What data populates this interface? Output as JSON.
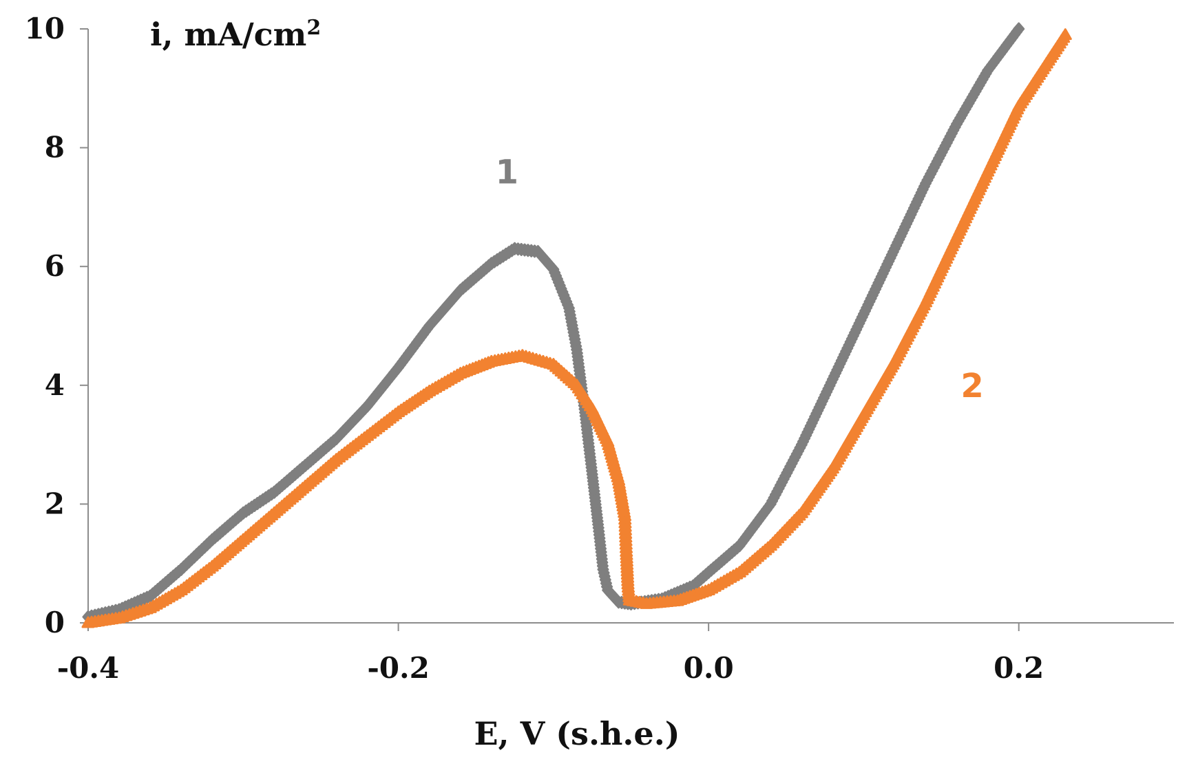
{
  "chart_data": {
    "type": "scatter",
    "title": "",
    "xlabel": "E, V (s.h.e.)",
    "ylabel_main": "i, mA/cm",
    "ylabel_sup": "2",
    "xlim": [
      -0.4,
      0.3
    ],
    "ylim": [
      0,
      10
    ],
    "xticks": [
      -0.4,
      -0.2,
      0.0,
      0.2
    ],
    "xtick_labels": [
      "-0.4",
      "-0.2",
      "0.0",
      "0.2"
    ],
    "yticks": [
      0,
      2,
      4,
      6,
      8,
      10
    ],
    "ytick_labels": [
      "0",
      "2",
      "4",
      "6",
      "8",
      "10"
    ],
    "grid": false,
    "series": [
      {
        "name": "1",
        "label_text": "1",
        "label_pos": [
          -0.13,
          7.4
        ],
        "color": "#7f7f7f",
        "marker": "diamond",
        "points": [
          [
            -0.4,
            0.1
          ],
          [
            -0.38,
            0.22
          ],
          [
            -0.36,
            0.45
          ],
          [
            -0.34,
            0.9
          ],
          [
            -0.32,
            1.4
          ],
          [
            -0.3,
            1.85
          ],
          [
            -0.28,
            2.2
          ],
          [
            -0.26,
            2.65
          ],
          [
            -0.24,
            3.1
          ],
          [
            -0.22,
            3.65
          ],
          [
            -0.2,
            4.3
          ],
          [
            -0.18,
            5.0
          ],
          [
            -0.16,
            5.6
          ],
          [
            -0.14,
            6.05
          ],
          [
            -0.125,
            6.3
          ],
          [
            -0.11,
            6.25
          ],
          [
            -0.1,
            5.95
          ],
          [
            -0.09,
            5.3
          ],
          [
            -0.085,
            4.6
          ],
          [
            -0.08,
            3.6
          ],
          [
            -0.075,
            2.5
          ],
          [
            -0.071,
            1.6
          ],
          [
            -0.068,
            0.9
          ],
          [
            -0.065,
            0.55
          ],
          [
            -0.058,
            0.35
          ],
          [
            -0.05,
            0.32
          ],
          [
            -0.03,
            0.4
          ],
          [
            -0.01,
            0.62
          ],
          [
            0.0,
            0.85
          ],
          [
            0.02,
            1.3
          ],
          [
            0.04,
            2.0
          ],
          [
            0.06,
            3.0
          ],
          [
            0.08,
            4.1
          ],
          [
            0.1,
            5.2
          ],
          [
            0.12,
            6.3
          ],
          [
            0.14,
            7.4
          ],
          [
            0.16,
            8.4
          ],
          [
            0.18,
            9.3
          ],
          [
            0.2,
            10.0
          ]
        ]
      },
      {
        "name": "2",
        "label_text": "2",
        "label_pos": [
          0.17,
          3.8
        ],
        "color": "#f28230",
        "marker": "triangle",
        "points": [
          [
            -0.4,
            0.0
          ],
          [
            -0.38,
            0.08
          ],
          [
            -0.36,
            0.25
          ],
          [
            -0.34,
            0.55
          ],
          [
            -0.32,
            0.95
          ],
          [
            -0.3,
            1.4
          ],
          [
            -0.28,
            1.85
          ],
          [
            -0.26,
            2.3
          ],
          [
            -0.24,
            2.75
          ],
          [
            -0.22,
            3.15
          ],
          [
            -0.2,
            3.55
          ],
          [
            -0.18,
            3.9
          ],
          [
            -0.16,
            4.2
          ],
          [
            -0.14,
            4.4
          ],
          [
            -0.12,
            4.5
          ],
          [
            -0.1,
            4.35
          ],
          [
            -0.085,
            4.0
          ],
          [
            -0.075,
            3.6
          ],
          [
            -0.065,
            3.05
          ],
          [
            -0.058,
            2.4
          ],
          [
            -0.054,
            1.8
          ],
          [
            -0.053,
            1.2
          ],
          [
            -0.052,
            0.65
          ],
          [
            -0.051,
            0.38
          ],
          [
            -0.04,
            0.32
          ],
          [
            -0.02,
            0.37
          ],
          [
            0.0,
            0.55
          ],
          [
            0.02,
            0.85
          ],
          [
            0.04,
            1.3
          ],
          [
            0.06,
            1.85
          ],
          [
            0.08,
            2.6
          ],
          [
            0.1,
            3.5
          ],
          [
            0.12,
            4.4
          ],
          [
            0.14,
            5.4
          ],
          [
            0.16,
            6.5
          ],
          [
            0.18,
            7.6
          ],
          [
            0.2,
            8.7
          ],
          [
            0.23,
            9.9
          ]
        ]
      }
    ]
  }
}
